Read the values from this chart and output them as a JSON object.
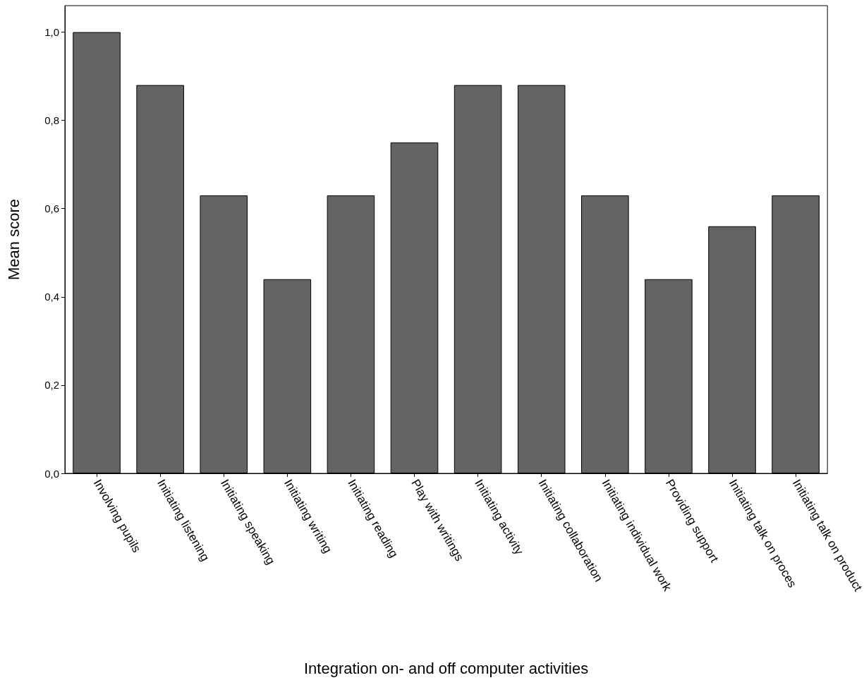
{
  "chart_data": {
    "type": "bar",
    "xlabel": "Integration on- and off computer activities",
    "ylabel": "Mean score",
    "categories": [
      "Involving pupils",
      "Initiating listening",
      "Initiating speaking",
      "Initiating writing",
      "Initiating reading",
      "Play with writings",
      "Initiating activity",
      "Initiating collaboration",
      "Initiating individual work",
      "Providing support",
      "Initiating talk on proces",
      "Initiating talk on product"
    ],
    "values": [
      1.0,
      0.88,
      0.63,
      0.44,
      0.63,
      0.75,
      0.88,
      0.88,
      0.63,
      0.44,
      0.56,
      0.63
    ],
    "color": "#646464",
    "ylim": [
      0,
      1.06
    ],
    "yticks": [
      {
        "value": 0,
        "label": "0,0"
      },
      {
        "value": 0.2,
        "label": "0,2"
      },
      {
        "value": 0.4,
        "label": "0,4"
      },
      {
        "value": 0.6,
        "label": "0,6"
      },
      {
        "value": 0.8,
        "label": "0,8"
      },
      {
        "value": 1.0,
        "label": "1,0"
      }
    ],
    "grid": false
  }
}
